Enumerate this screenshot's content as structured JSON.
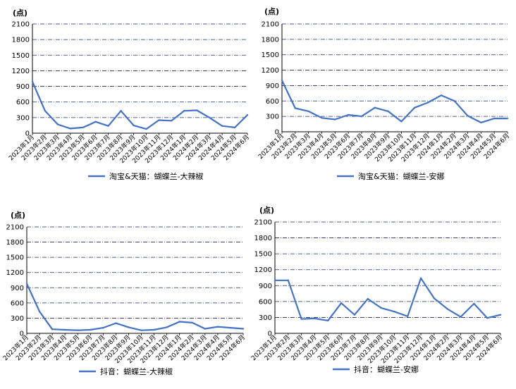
{
  "chart_data": [
    {
      "type": "line",
      "unit_label": "(点)",
      "y_ticks": [
        0,
        300,
        600,
        900,
        1200,
        1500,
        1800,
        2100
      ],
      "ylim": [
        0,
        2100
      ],
      "categories": [
        "2023年1月",
        "2023年2月",
        "2023年3月",
        "2023年4月",
        "2023年5月",
        "2023年6月",
        "2023年7月",
        "2023年8月",
        "2023年9月",
        "2023年10月",
        "2023年11月",
        "2023年12月",
        "2024年1月",
        "2024年2月",
        "2024年3月",
        "2024年4月",
        "2024年5月",
        "2024年6月"
      ],
      "series": [
        {
          "name": "淘宝&天猫：蝴蝶兰-大辣椒",
          "color": "#4472C4",
          "values": [
            990,
            430,
            170,
            90,
            110,
            220,
            140,
            430,
            150,
            80,
            250,
            240,
            430,
            440,
            300,
            140,
            110,
            350
          ]
        }
      ],
      "legend": "bottom-center"
    },
    {
      "type": "line",
      "unit_label": "(点)",
      "y_ticks": [
        0,
        300,
        600,
        900,
        1200,
        1500,
        1800,
        2100
      ],
      "ylim": [
        0,
        2100
      ],
      "categories": [
        "2023年1月",
        "2023年2月",
        "2023年3月",
        "2023年4月",
        "2023年5月",
        "2023年6月",
        "2023年7月",
        "2023年8月",
        "2023年9月",
        "2023年10月",
        "2023年11月",
        "2023年12月",
        "2024年1月",
        "2024年2月",
        "2024年3月",
        "2024年4月",
        "2024年5月",
        "2024年6月"
      ],
      "series": [
        {
          "name": "淘宝&天猫：蝴蝶兰-安娜",
          "color": "#4472C4",
          "values": [
            1000,
            460,
            400,
            270,
            240,
            330,
            300,
            470,
            400,
            200,
            470,
            570,
            710,
            600,
            310,
            180,
            260,
            260
          ]
        }
      ],
      "legend": "bottom-center"
    },
    {
      "type": "line",
      "unit_label": "(点)",
      "y_ticks": [
        0,
        300,
        600,
        900,
        1200,
        1500,
        1800,
        2100
      ],
      "ylim": [
        0,
        2100
      ],
      "categories": [
        "2023年1月",
        "2023年2月",
        "2023年3月",
        "2023年4月",
        "2023年5月",
        "2023年6月",
        "2023年7月",
        "2023年8月",
        "2023年9月",
        "2023年10月",
        "2023年11月",
        "2023年12月",
        "2024年1月",
        "2024年2月",
        "2024年3月",
        "2024年4月",
        "2024年5月",
        "2024年6月"
      ],
      "series": [
        {
          "name": "抖音：蝴蝶兰-大辣椒",
          "color": "#4472C4",
          "values": [
            980,
            430,
            80,
            70,
            60,
            70,
            110,
            200,
            120,
            60,
            70,
            120,
            230,
            210,
            90,
            130,
            110,
            90
          ]
        }
      ],
      "legend": "bottom-center"
    },
    {
      "type": "line",
      "unit_label": "(点)",
      "y_ticks": [
        0,
        300,
        600,
        900,
        1200,
        1500,
        1800,
        2100
      ],
      "ylim": [
        0,
        2100
      ],
      "categories": [
        "2023年1月",
        "2023年2月",
        "2023年3月",
        "2023年4月",
        "2023年5月",
        "2023年6月",
        "2023年7月",
        "2023年8月",
        "2023年9月",
        "2023年10月",
        "2023年11月",
        "2023年12月",
        "2024年1月",
        "2024年2月",
        "2024年3月",
        "2024年4月",
        "2024年5月",
        "2024年6月"
      ],
      "series": [
        {
          "name": "抖音：蝴蝶兰-安娜",
          "color": "#4472C4",
          "values": [
            1000,
            1000,
            270,
            280,
            240,
            570,
            350,
            650,
            480,
            410,
            320,
            1040,
            660,
            460,
            310,
            560,
            290,
            350
          ]
        }
      ],
      "legend": "bottom-center"
    }
  ]
}
